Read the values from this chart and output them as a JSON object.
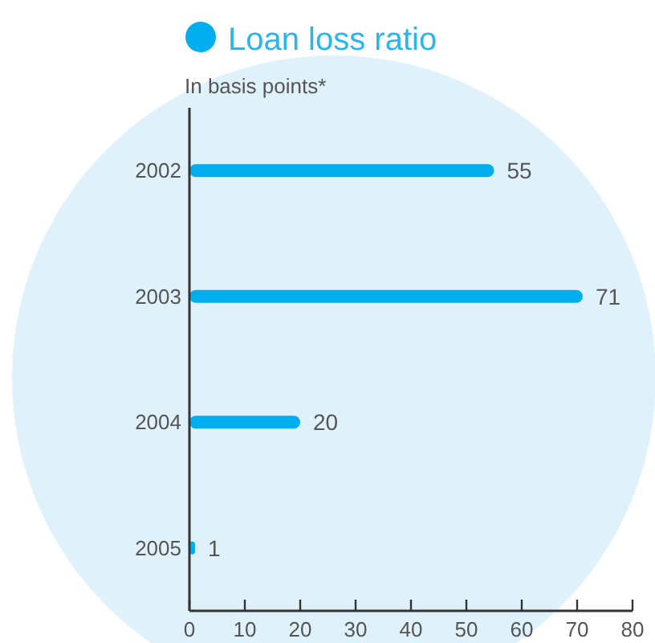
{
  "chart_data": {
    "type": "bar",
    "orientation": "horizontal",
    "title": "Loan loss ratio",
    "subtitle": "In basis points*",
    "categories": [
      "2002",
      "2003",
      "2004",
      "2005"
    ],
    "values": [
      55,
      71,
      20,
      1
    ],
    "color": "#00aeef",
    "xlim": [
      0,
      80
    ],
    "xticks": [
      0,
      10,
      20,
      30,
      40,
      50,
      60,
      70,
      80
    ],
    "data_labels": true
  }
}
